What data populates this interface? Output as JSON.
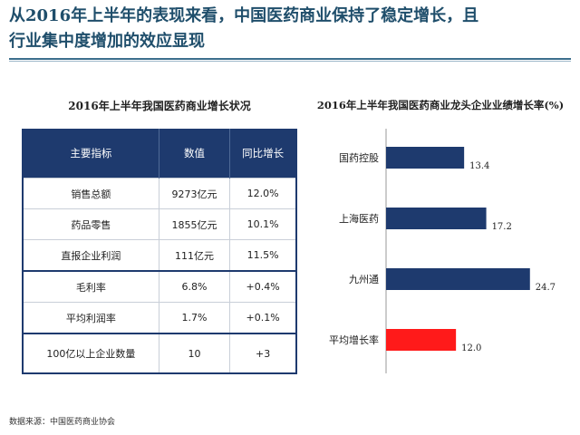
{
  "headline": {
    "line1_pre": "从",
    "line1_year": "2016",
    "line1_post": "年上半年的表现来看，中国医药商业保持了稳定增长，且",
    "line2": "行业集中度增加的效应显现"
  },
  "table": {
    "title": "2016年上半年我国医药商业增长状况",
    "headers": [
      "主要指标",
      "数值",
      "同比增长"
    ],
    "rows": [
      [
        "销售总额",
        "9273亿元",
        "12.0%"
      ],
      [
        "药品零售",
        "1855亿元",
        "10.1%"
      ],
      [
        "直报企业利润",
        "111亿元",
        "11.5%"
      ],
      [
        "毛利率",
        "6.8%",
        "+0.4%"
      ],
      [
        "平均利润率",
        "1.7%",
        "+0.1%"
      ],
      [
        "100亿以上企业数量",
        "10",
        "+3"
      ]
    ]
  },
  "chart_data": {
    "type": "bar",
    "orientation": "horizontal",
    "title": "2016年上半年我国医药商业龙头企业业绩增长率(%)",
    "categories": [
      "国药控股",
      "上海医药",
      "九州通",
      "平均增长率"
    ],
    "values": [
      13.4,
      17.2,
      24.7,
      12.0
    ],
    "value_labels": [
      "13.4",
      "17.2",
      "24.7",
      "12.0"
    ],
    "colors": [
      "#1e3a6e",
      "#1e3a6e",
      "#1e3a6e",
      "#ff1a1a"
    ],
    "xlim": [
      0,
      28
    ],
    "grid": false,
    "legend": "none"
  },
  "source": "数据来源：中国医药商业协会"
}
